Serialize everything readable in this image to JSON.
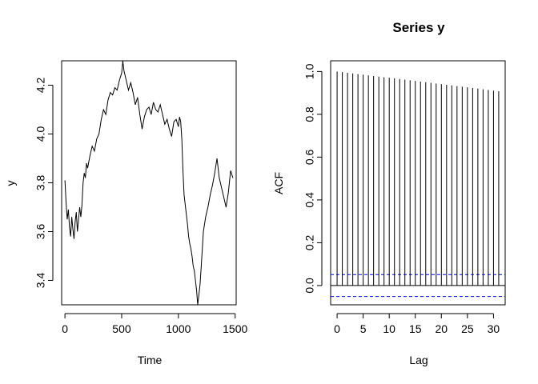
{
  "chart_data": [
    {
      "type": "line",
      "title": "",
      "xlabel": "Time",
      "ylabel": "y",
      "xlim": [
        -29,
        1509
      ],
      "ylim": [
        3.3,
        4.3
      ],
      "xticks": [
        "0",
        "500",
        "1000",
        "1500"
      ],
      "yticks": [
        "3.4",
        "3.6",
        "3.8",
        "4.0",
        "4.2"
      ],
      "series": [
        {
          "x": [
            0,
            10,
            20,
            30,
            40,
            50,
            60,
            70,
            80,
            90,
            100,
            110,
            120,
            130,
            140,
            150,
            160,
            170,
            180,
            190,
            200,
            220,
            240,
            260,
            280,
            300,
            320,
            340,
            360,
            380,
            400,
            420,
            440,
            460,
            480,
            500,
            510,
            520,
            540,
            560,
            580,
            600,
            620,
            640,
            660,
            680,
            700,
            720,
            740,
            760,
            780,
            800,
            820,
            840,
            860,
            880,
            900,
            920,
            940,
            960,
            980,
            1000,
            1010,
            1020,
            1030,
            1040,
            1050,
            1060,
            1070,
            1080,
            1090,
            1100,
            1110,
            1120,
            1130,
            1140,
            1150,
            1160,
            1170,
            1180,
            1190,
            1200,
            1220,
            1240,
            1260,
            1280,
            1300,
            1320,
            1340,
            1360,
            1380,
            1400,
            1420,
            1440,
            1460,
            1480
          ],
          "y": [
            3.81,
            3.72,
            3.65,
            3.69,
            3.62,
            3.58,
            3.66,
            3.61,
            3.57,
            3.64,
            3.68,
            3.6,
            3.65,
            3.7,
            3.66,
            3.71,
            3.8,
            3.84,
            3.82,
            3.88,
            3.86,
            3.91,
            3.95,
            3.93,
            3.98,
            4.0,
            4.06,
            4.1,
            4.08,
            4.14,
            4.17,
            4.16,
            4.19,
            4.18,
            4.22,
            4.25,
            4.3,
            4.26,
            4.22,
            4.18,
            4.21,
            4.17,
            4.12,
            4.15,
            4.08,
            4.02,
            4.07,
            4.1,
            4.11,
            4.08,
            4.13,
            4.1,
            4.09,
            4.12,
            4.08,
            4.04,
            4.06,
            4.02,
            3.99,
            4.05,
            4.06,
            4.03,
            4.07,
            4.05,
            3.98,
            3.85,
            3.75,
            3.71,
            3.67,
            3.63,
            3.58,
            3.55,
            3.53,
            3.5,
            3.46,
            3.44,
            3.4,
            3.36,
            3.3,
            3.34,
            3.38,
            3.45,
            3.6,
            3.66,
            3.7,
            3.75,
            3.79,
            3.84,
            3.9,
            3.82,
            3.78,
            3.74,
            3.7,
            3.76,
            3.85,
            3.82
          ]
        }
      ]
    },
    {
      "type": "bar",
      "title": "Series  y",
      "xlabel": "Lag",
      "ylabel": "ACF",
      "xlim": [
        -1.24,
        32.24
      ],
      "ylim": [
        -0.09,
        1.05
      ],
      "xticks": [
        "0",
        "5",
        "10",
        "15",
        "20",
        "25",
        "30"
      ],
      "yticks": [
        "0.0",
        "0.2",
        "0.4",
        "0.6",
        "0.8",
        "1.0"
      ],
      "zero_line": 0,
      "confidence_band": 0.051,
      "band_color": "#0000ff",
      "lags": [
        0,
        1,
        2,
        3,
        4,
        5,
        6,
        7,
        8,
        9,
        10,
        11,
        12,
        13,
        14,
        15,
        16,
        17,
        18,
        19,
        20,
        21,
        22,
        23,
        24,
        25,
        26,
        27,
        28,
        29,
        30,
        31
      ],
      "values": [
        1.0,
        0.997,
        0.994,
        0.991,
        0.988,
        0.985,
        0.982,
        0.979,
        0.976,
        0.973,
        0.971,
        0.968,
        0.965,
        0.962,
        0.959,
        0.956,
        0.953,
        0.95,
        0.947,
        0.944,
        0.941,
        0.938,
        0.935,
        0.932,
        0.929,
        0.926,
        0.923,
        0.92,
        0.917,
        0.914,
        0.911,
        0.908
      ]
    }
  ]
}
